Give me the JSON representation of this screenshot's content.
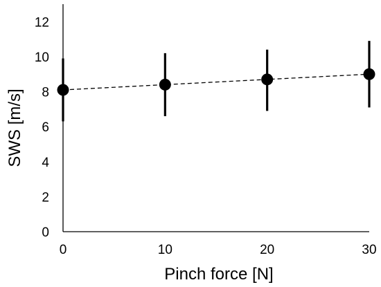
{
  "chart_data": {
    "type": "scatter",
    "xlabel": "Pinch force [N]",
    "ylabel": "SWS [m/s]",
    "xlim": [
      0,
      30
    ],
    "ylim": [
      0,
      13
    ],
    "x_ticks": [
      "0",
      "10",
      "20",
      "30"
    ],
    "y_ticks": [
      "0",
      "2",
      "4",
      "6",
      "8",
      "10",
      "12"
    ],
    "grid": false,
    "legend": "none",
    "x": [
      0,
      10,
      20,
      30
    ],
    "y": [
      8.1,
      8.4,
      8.7,
      9.0
    ],
    "error_low": [
      6.3,
      6.6,
      6.9,
      7.1
    ],
    "error_high": [
      9.9,
      10.2,
      10.4,
      10.9
    ],
    "trendline": {
      "style": "dashed",
      "x": [
        0,
        30
      ],
      "y": [
        8.1,
        9.0
      ]
    },
    "colors": {
      "marker": "#000000",
      "axis": "#000000"
    }
  }
}
